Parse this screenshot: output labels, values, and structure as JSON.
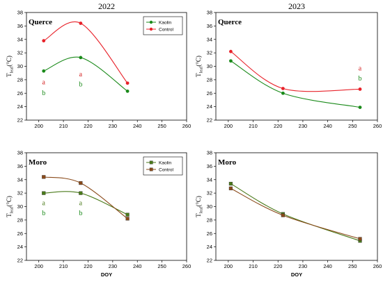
{
  "colors": {
    "kaolin_round": "#1a8a1a",
    "control_round": "#e8222a",
    "kaolin_square": "#4a7a1a",
    "control_square": "#8a4a1a",
    "annot_red": "#d42020",
    "annot_green": "#1a8a1a"
  },
  "chart_data": [
    {
      "type": "line",
      "year": "2022",
      "panel_label": "Querce",
      "xlabel": "",
      "ylabel_main": "T",
      "ylabel_sub": "leaf",
      "ylabel_unit": "(°C)",
      "xlim": [
        195,
        260
      ],
      "ylim": [
        22,
        38
      ],
      "xticks": [
        200,
        210,
        220,
        230,
        240,
        250,
        260
      ],
      "yticks": [
        22,
        24,
        26,
        28,
        30,
        32,
        34,
        36,
        38
      ],
      "legend": "top-right",
      "marker": "circle",
      "series": [
        {
          "name": "Kaolin",
          "color_key": "kaolin_round",
          "x": [
            202,
            217,
            236
          ],
          "y": [
            29.3,
            31.3,
            26.3
          ]
        },
        {
          "name": "Control",
          "color_key": "control_round",
          "x": [
            202,
            217,
            236
          ],
          "y": [
            33.8,
            36.4,
            27.5
          ]
        }
      ],
      "annotations": [
        {
          "text": "a",
          "x": 202,
          "y": 27.3,
          "color_key": "annot_red"
        },
        {
          "text": "b",
          "x": 202,
          "y": 25.7,
          "color_key": "annot_green"
        },
        {
          "text": "a",
          "x": 217,
          "y": 28.5,
          "color_key": "annot_red"
        },
        {
          "text": "b",
          "x": 217,
          "y": 27.0,
          "color_key": "annot_green"
        }
      ]
    },
    {
      "type": "line",
      "year": "2023",
      "panel_label": "Querce",
      "xlabel": "",
      "ylabel_main": "T",
      "ylabel_sub": "leaf",
      "ylabel_unit": "(°C)",
      "xlim": [
        195,
        260
      ],
      "ylim": [
        22,
        38
      ],
      "xticks": [
        200,
        210,
        220,
        230,
        240,
        250,
        260
      ],
      "yticks": [
        22,
        24,
        26,
        28,
        30,
        32,
        34,
        36,
        38
      ],
      "legend": "none",
      "marker": "circle",
      "series": [
        {
          "name": "Kaolin",
          "color_key": "kaolin_round",
          "x": [
            201,
            222,
            253
          ],
          "y": [
            30.8,
            26.0,
            23.9
          ]
        },
        {
          "name": "Control",
          "color_key": "control_round",
          "x": [
            201,
            222,
            253
          ],
          "y": [
            32.2,
            26.7,
            26.6
          ]
        }
      ],
      "annotations": [
        {
          "text": "a",
          "x": 253,
          "y": 29.4,
          "color_key": "annot_red"
        },
        {
          "text": "b",
          "x": 253,
          "y": 27.9,
          "color_key": "annot_green"
        }
      ]
    },
    {
      "type": "line",
      "year": "",
      "panel_label": "Moro",
      "xlabel": "DOY",
      "ylabel_main": "T",
      "ylabel_sub": "leaf",
      "ylabel_unit": "(°C)",
      "xlim": [
        195,
        260
      ],
      "ylim": [
        22,
        38
      ],
      "xticks": [
        200,
        210,
        220,
        230,
        240,
        250,
        260
      ],
      "yticks": [
        22,
        24,
        26,
        28,
        30,
        32,
        34,
        36,
        38
      ],
      "legend": "top-right",
      "marker": "square",
      "series": [
        {
          "name": "Kaolin",
          "color_key": "kaolin_square",
          "x": [
            202,
            217,
            236
          ],
          "y": [
            32.0,
            32.0,
            28.8
          ]
        },
        {
          "name": "Control",
          "color_key": "control_square",
          "x": [
            202,
            217,
            236
          ],
          "y": [
            34.4,
            33.5,
            28.2
          ]
        }
      ],
      "annotations": [
        {
          "text": "a",
          "x": 202,
          "y": 30.2,
          "color_key": "kaolin_square"
        },
        {
          "text": "b",
          "x": 202,
          "y": 28.7,
          "color_key": "annot_green"
        },
        {
          "text": "a",
          "x": 217,
          "y": 30.2,
          "color_key": "kaolin_square"
        },
        {
          "text": "b",
          "x": 217,
          "y": 28.7,
          "color_key": "annot_green"
        }
      ]
    },
    {
      "type": "line",
      "year": "",
      "panel_label": "Moro",
      "xlabel": "DOY",
      "ylabel_main": "T",
      "ylabel_sub": "leaf",
      "ylabel_unit": "(°C)",
      "xlim": [
        195,
        260
      ],
      "ylim": [
        22,
        38
      ],
      "xticks": [
        200,
        210,
        220,
        230,
        240,
        250,
        260
      ],
      "yticks": [
        22,
        24,
        26,
        28,
        30,
        32,
        34,
        36,
        38
      ],
      "legend": "none",
      "marker": "square",
      "series": [
        {
          "name": "Kaolin",
          "color_key": "kaolin_square",
          "x": [
            201,
            222,
            253
          ],
          "y": [
            33.4,
            28.9,
            24.9
          ]
        },
        {
          "name": "Control",
          "color_key": "control_square",
          "x": [
            201,
            222,
            253
          ],
          "y": [
            32.7,
            28.7,
            25.2
          ]
        }
      ],
      "annotations": []
    }
  ]
}
